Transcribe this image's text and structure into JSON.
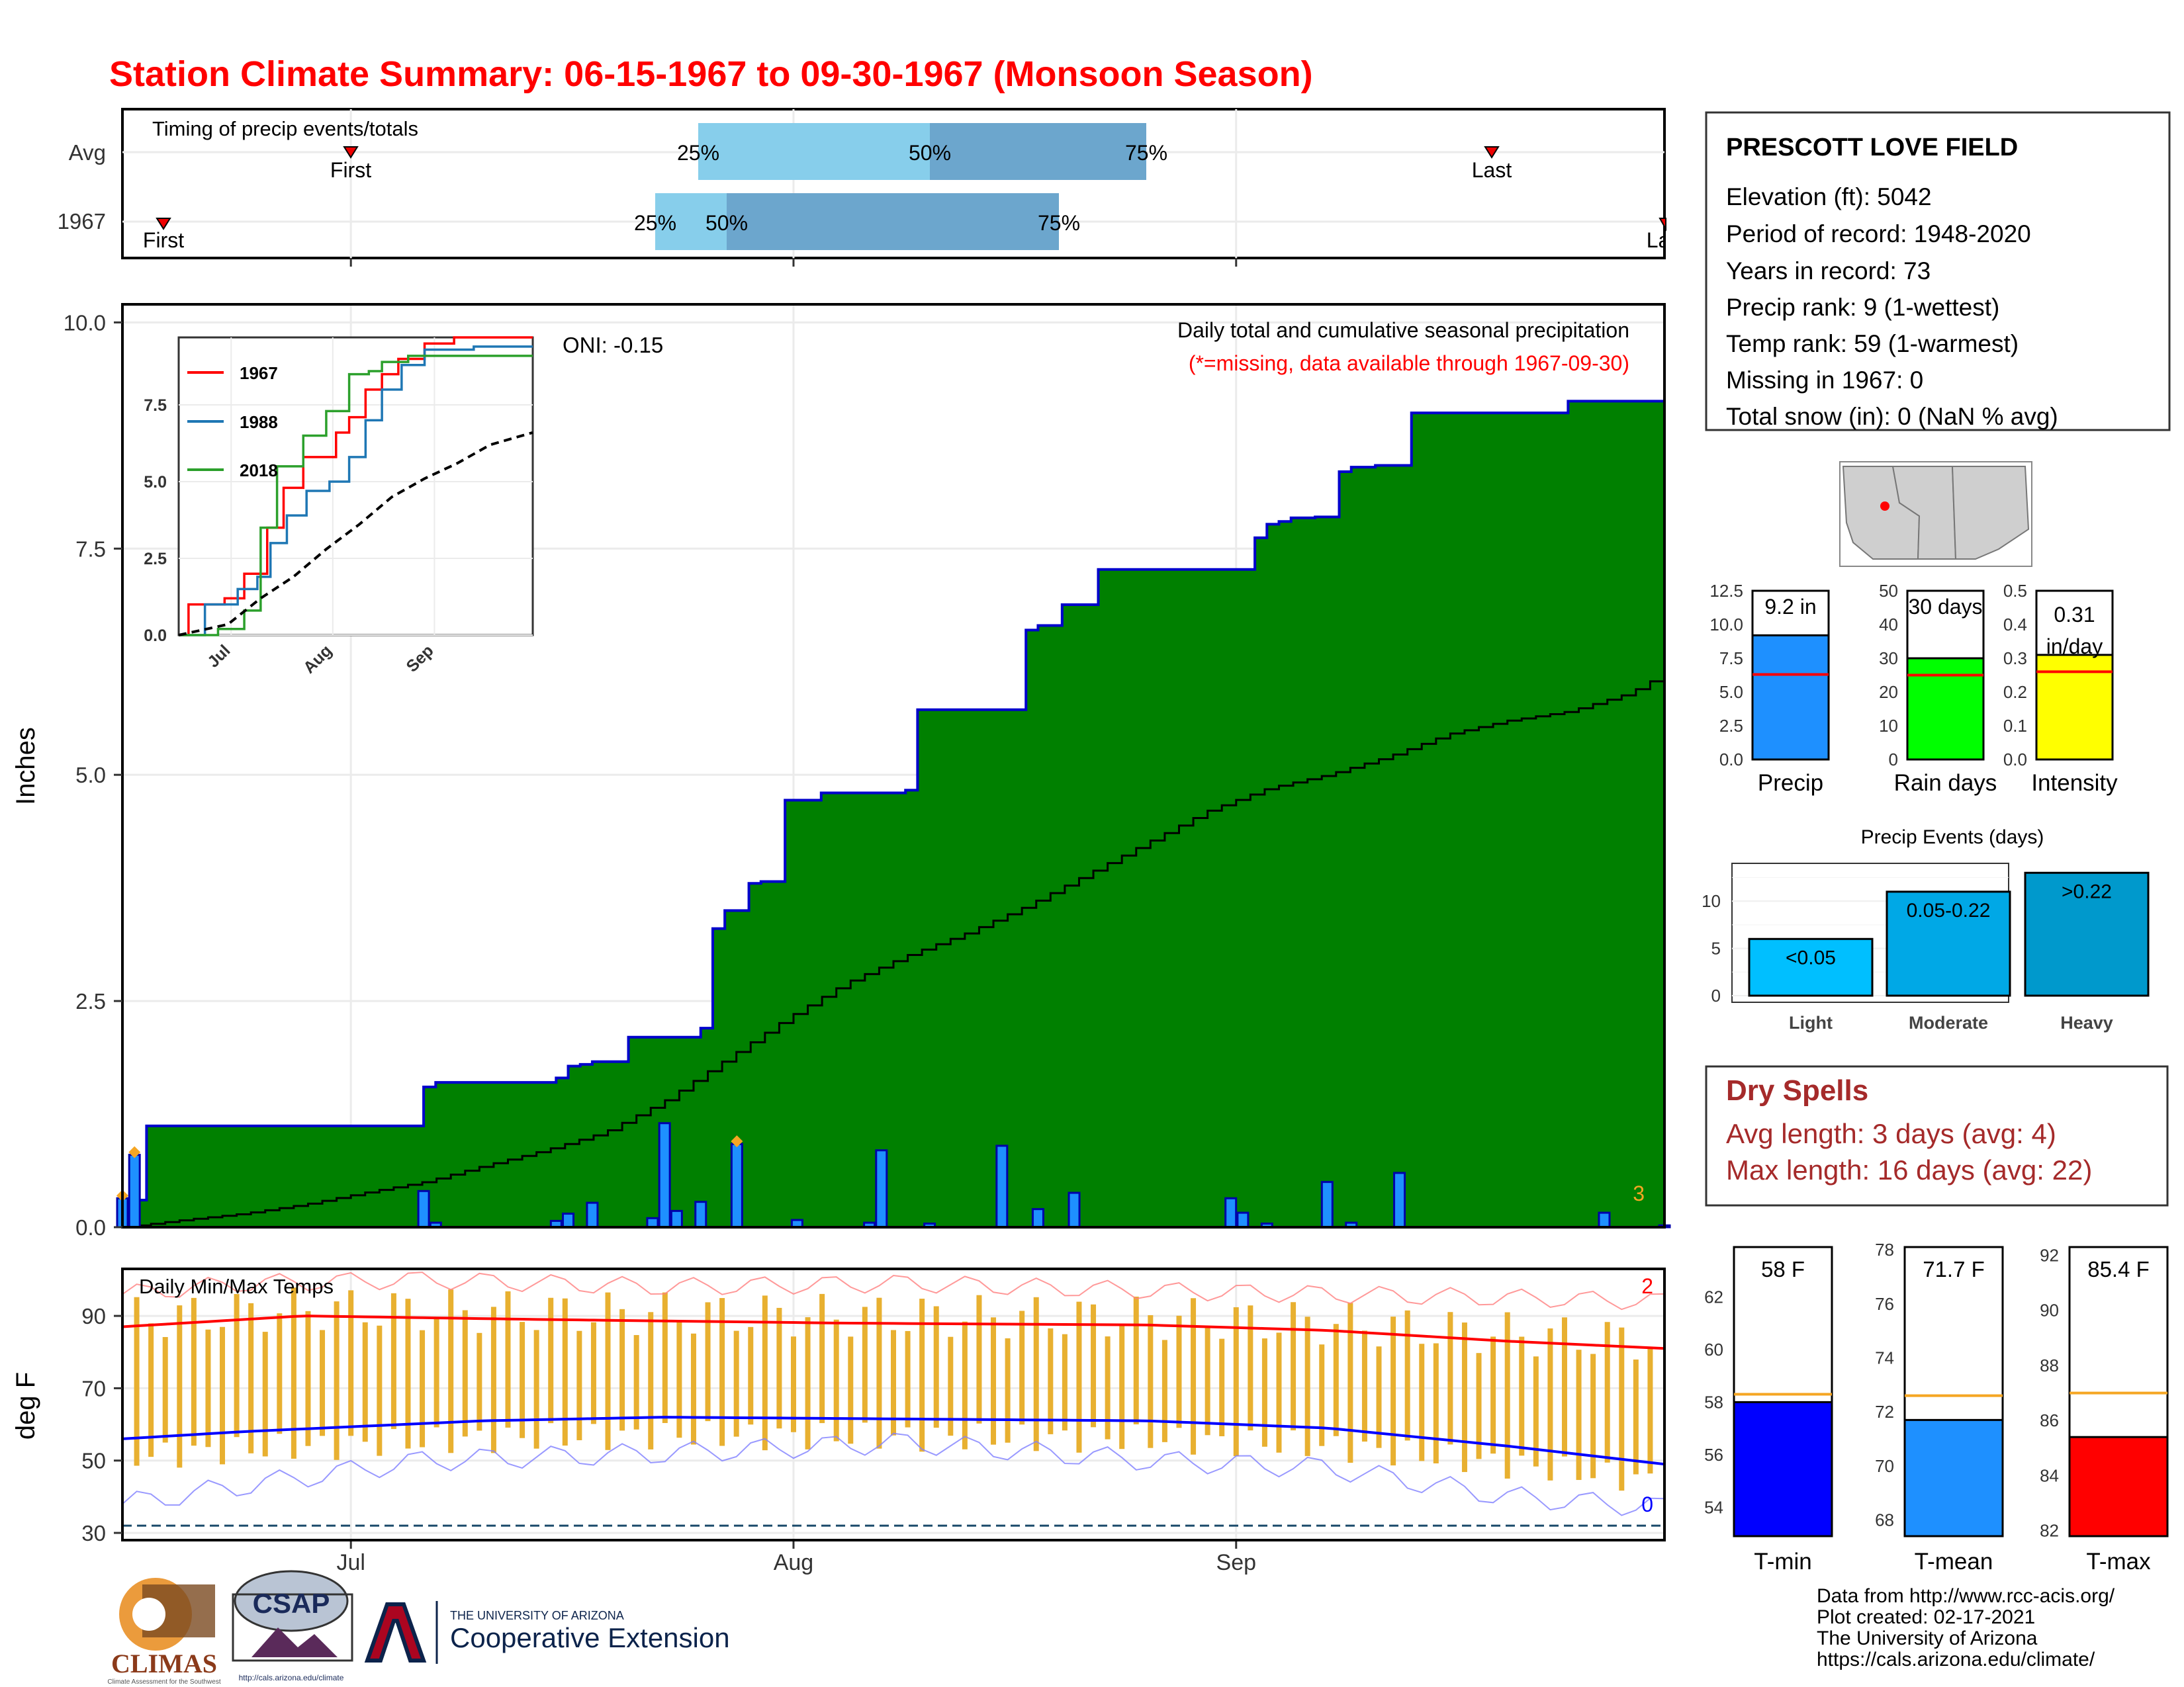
{
  "title": "Station Climate Summary: 06-15-1967 to 09-30-1967 (Monsoon Season)",
  "colors": {
    "title": "#ff0000",
    "cum_fill": "#008000",
    "cum_line": "#0000cc",
    "avg_fill": "#e0e0e0",
    "bar": "#1e90ff",
    "orange": "#f5a623",
    "quartile_light": "#87ceeb",
    "quartile_dark": "#6ca6cd",
    "tmax": "#ff0000",
    "tmin": "#0000ff",
    "temp_bar": "#e8b030",
    "dry": "#a52a2a",
    "rain_days": "#00ff00",
    "intensity": "#ffff00",
    "light": "#00bfff",
    "moderate": "#00a8e6",
    "heavy": "#0099cc"
  },
  "timing": {
    "title": "Timing of precip events/totals",
    "rows": [
      "Avg",
      "1967"
    ],
    "avg": {
      "first": "First",
      "last": "Last",
      "q25": "25%",
      "q50": "50%",
      "q75": "75%"
    },
    "y1967": {
      "first": "First",
      "last": "Last",
      "q25": "25%",
      "q50": "50%",
      "q75": "75%"
    }
  },
  "month_labels": [
    "Jul",
    "Aug",
    "Sep"
  ],
  "main": {
    "ylabel": "Inches",
    "oni": "ONI: -0.15",
    "legend1": "Daily total and cumulative seasonal precipitation",
    "legend2": "(*=missing, data available through 1967-09-30)",
    "corner_count": "3",
    "yticks": [
      "0.0",
      "2.5",
      "5.0",
      "7.5",
      "10.0"
    ]
  },
  "chart_data": [
    {
      "type": "area",
      "title": "Daily total and cumulative seasonal precipitation",
      "ylabel": "Inches",
      "ylim": [
        0,
        10.2
      ],
      "x_start": "1967-06-15",
      "cumulative_1967": [
        [
          0,
          0.02
        ],
        [
          1,
          0.3
        ],
        [
          2,
          1.12
        ],
        [
          25,
          1.55
        ],
        [
          26,
          1.6
        ],
        [
          36,
          1.65
        ],
        [
          37,
          1.78
        ],
        [
          38,
          1.8
        ],
        [
          39,
          1.83
        ],
        [
          42,
          2.1
        ],
        [
          47,
          2.1
        ],
        [
          48,
          2.2
        ],
        [
          49,
          3.3
        ],
        [
          50,
          3.5
        ],
        [
          52,
          3.8
        ],
        [
          53,
          3.82
        ],
        [
          55,
          4.72
        ],
        [
          58,
          4.8
        ],
        [
          65,
          4.83
        ],
        [
          66,
          5.72
        ],
        [
          75,
          6.6
        ],
        [
          76,
          6.65
        ],
        [
          78,
          6.88
        ],
        [
          81,
          7.27
        ],
        [
          94,
          7.62
        ],
        [
          95,
          7.77
        ],
        [
          96,
          7.8
        ],
        [
          97,
          7.84
        ],
        [
          99,
          7.85
        ],
        [
          101,
          8.35
        ],
        [
          102,
          8.4
        ],
        [
          104,
          8.42
        ],
        [
          107,
          9.0
        ],
        [
          120,
          9.13
        ],
        [
          128,
          9.2
        ]
      ],
      "average_cumulative": [
        [
          0,
          0.0
        ],
        [
          5,
          0.08
        ],
        [
          10,
          0.15
        ],
        [
          15,
          0.25
        ],
        [
          20,
          0.38
        ],
        [
          25,
          0.5
        ],
        [
          30,
          0.68
        ],
        [
          35,
          0.85
        ],
        [
          40,
          1.05
        ],
        [
          45,
          1.4
        ],
        [
          50,
          1.85
        ],
        [
          55,
          2.3
        ],
        [
          60,
          2.7
        ],
        [
          65,
          3.0
        ],
        [
          70,
          3.25
        ],
        [
          75,
          3.55
        ],
        [
          80,
          3.9
        ],
        [
          85,
          4.25
        ],
        [
          90,
          4.6
        ],
        [
          95,
          4.85
        ],
        [
          100,
          5.0
        ],
        [
          105,
          5.2
        ],
        [
          110,
          5.45
        ],
        [
          115,
          5.6
        ],
        [
          120,
          5.7
        ],
        [
          125,
          5.9
        ],
        [
          128,
          6.12
        ]
      ],
      "daily": [
        [
          0,
          0.32
        ],
        [
          1,
          0.8
        ],
        [
          25,
          0.4
        ],
        [
          26,
          0.05
        ],
        [
          36,
          0.07
        ],
        [
          37,
          0.15
        ],
        [
          39,
          0.27
        ],
        [
          44,
          0.1
        ],
        [
          45,
          1.15
        ],
        [
          46,
          0.18
        ],
        [
          48,
          0.28
        ],
        [
          51,
          0.92
        ],
        [
          56,
          0.08
        ],
        [
          62,
          0.05
        ],
        [
          63,
          0.85
        ],
        [
          67,
          0.04
        ],
        [
          73,
          0.9
        ],
        [
          76,
          0.2
        ],
        [
          79,
          0.38
        ],
        [
          92,
          0.32
        ],
        [
          93,
          0.16
        ],
        [
          95,
          0.04
        ],
        [
          100,
          0.5
        ],
        [
          102,
          0.05
        ],
        [
          106,
          0.6
        ],
        [
          123,
          0.16
        ],
        [
          128,
          0.02
        ]
      ],
      "missing_markers": [
        [
          0,
          0.32
        ],
        [
          1,
          0.8
        ],
        [
          51,
          0.92
        ]
      ]
    },
    {
      "type": "line",
      "title": "",
      "xlim": [
        "1967-06-15",
        "1967-09-30"
      ],
      "ylim": [
        0,
        9.7
      ],
      "yticks": [
        0.0,
        2.5,
        5.0,
        7.5
      ],
      "series": [
        {
          "name": "1967",
          "color": "#ff0000",
          "points": [
            [
              0,
              0.0
            ],
            [
              3,
              1.0
            ],
            [
              14,
              1.2
            ],
            [
              20,
              2.0
            ],
            [
              27,
              3.5
            ],
            [
              32,
              4.8
            ],
            [
              38,
              5.8
            ],
            [
              48,
              6.6
            ],
            [
              52,
              7.1
            ],
            [
              57,
              8.0
            ],
            [
              62,
              8.5
            ],
            [
              67,
              9.0
            ],
            [
              75,
              9.5
            ],
            [
              84,
              9.7
            ],
            [
              108,
              9.7
            ]
          ]
        },
        {
          "name": "1988",
          "color": "#1f77b4",
          "points": [
            [
              0,
              0.0
            ],
            [
              8,
              1.0
            ],
            [
              18,
              1.5
            ],
            [
              24,
              1.9
            ],
            [
              28,
              3.0
            ],
            [
              33,
              3.9
            ],
            [
              39,
              4.7
            ],
            [
              46,
              5.0
            ],
            [
              52,
              5.8
            ],
            [
              57,
              7.0
            ],
            [
              62,
              8.0
            ],
            [
              68,
              8.8
            ],
            [
              75,
              9.3
            ],
            [
              90,
              9.4
            ],
            [
              108,
              9.4
            ]
          ]
        },
        {
          "name": "2018",
          "color": "#2ca02c",
          "points": [
            [
              0,
              0.0
            ],
            [
              12,
              0.2
            ],
            [
              20,
              0.8
            ],
            [
              25,
              3.5
            ],
            [
              30,
              5.5
            ],
            [
              38,
              6.5
            ],
            [
              45,
              7.3
            ],
            [
              52,
              8.5
            ],
            [
              58,
              8.6
            ],
            [
              62,
              8.9
            ],
            [
              70,
              9.1
            ],
            [
              108,
              9.1
            ]
          ]
        },
        {
          "name": "",
          "color": "#000000",
          "points": [
            [
              0,
              0.0
            ],
            [
              15,
              0.35
            ],
            [
              25,
              1.2
            ],
            [
              35,
              1.9
            ],
            [
              45,
              2.8
            ],
            [
              55,
              3.6
            ],
            [
              65,
              4.5
            ],
            [
              75,
              5.1
            ],
            [
              85,
              5.6
            ],
            [
              95,
              6.2
            ],
            [
              108,
              6.6
            ]
          ]
        }
      ],
      "legend_placement": "top-left"
    },
    {
      "type": "line",
      "title": "Daily Min/Max Temps",
      "ylabel": "deg F",
      "ylim": [
        28,
        103
      ],
      "yticks": [
        30,
        50,
        70,
        90
      ],
      "freezing_line": 32,
      "count_high": "2",
      "count_low": "0",
      "series": [
        {
          "name": "",
          "color": "#ff0000",
          "points": [
            [
              0,
              87
            ],
            [
              15,
              90
            ],
            [
              35,
              89
            ],
            [
              60,
              88
            ],
            [
              85,
              87.5
            ],
            [
              100,
              86
            ],
            [
              115,
              83
            ],
            [
              128,
              81
            ]
          ]
        },
        {
          "name": "",
          "color": "#0000ff",
          "points": [
            [
              0,
              56
            ],
            [
              10,
              58
            ],
            [
              30,
              61
            ],
            [
              45,
              62
            ],
            [
              65,
              61.5
            ],
            [
              85,
              61
            ],
            [
              100,
              59
            ],
            [
              115,
              54
            ],
            [
              128,
              49
            ]
          ]
        },
        {
          "name": "",
          "color": "#ff8080",
          "points": [
            [
              0,
              96
            ],
            [
              10,
              99
            ],
            [
              25,
              100
            ],
            [
              45,
              98
            ],
            [
              65,
              99
            ],
            [
              85,
              97
            ],
            [
              100,
              96
            ],
            [
              115,
              95
            ],
            [
              128,
              94
            ]
          ]
        },
        {
          "name": "",
          "color": "#8080ff",
          "points": [
            [
              0,
              38
            ],
            [
              10,
              43
            ],
            [
              25,
              50
            ],
            [
              45,
              52
            ],
            [
              65,
              55
            ],
            [
              85,
              50
            ],
            [
              100,
              48
            ],
            [
              115,
              40
            ],
            [
              128,
              37
            ]
          ]
        }
      ]
    },
    {
      "type": "bar",
      "title": "",
      "categories": [
        "Precip",
        "Rain days",
        "Intensity"
      ],
      "values": [
        9.2,
        30,
        0.31
      ],
      "labels": [
        "9.2 in",
        "30 days",
        "0.31 in/day"
      ],
      "averages": [
        6.3,
        25,
        0.26
      ],
      "ylims": [
        [
          0,
          12.5
        ],
        [
          0,
          50
        ],
        [
          0,
          0.5
        ]
      ],
      "yticks": [
        [
          "0.0",
          "2.5",
          "5.0",
          "7.5",
          "10.0",
          "12.5"
        ],
        [
          "0",
          "10",
          "20",
          "30",
          "40",
          "50"
        ],
        [
          "0.0",
          "0.1",
          "0.2",
          "0.3",
          "0.4",
          "0.5"
        ]
      ]
    },
    {
      "type": "bar",
      "title": "Precip Events (days)",
      "categories": [
        "Light",
        "Moderate",
        "Heavy"
      ],
      "values": [
        6,
        11,
        13
      ],
      "labels": [
        "<0.05",
        "0.05-0.22",
        ">0.22"
      ],
      "ylim": [
        0,
        14
      ],
      "yticks": [
        "0",
        "5",
        "10"
      ]
    },
    {
      "type": "bar",
      "title": "",
      "categories": [
        "T-min",
        "T-mean",
        "T-max"
      ],
      "values": [
        58,
        71.7,
        85.4
      ],
      "labels": [
        "58 F",
        "71.7 F",
        "85.4 F"
      ],
      "averages": [
        58.3,
        72.6,
        87.0
      ],
      "ylims": [
        [
          52.9,
          63.9
        ],
        [
          67.4,
          78.1
        ],
        [
          81.8,
          92.3
        ]
      ],
      "yticks": [
        [
          "54",
          "56",
          "58",
          "60",
          "62"
        ],
        [
          "68",
          "70",
          "72",
          "74",
          "76",
          "78"
        ],
        [
          "82",
          "84",
          "86",
          "88",
          "90",
          "92"
        ]
      ]
    }
  ],
  "station": {
    "name": "PRESCOTT LOVE FIELD",
    "lines": [
      "Elevation (ft): 5042",
      "Period of record: 1948-2020",
      "Years in record: 73",
      "Precip rank: 9 (1-wettest)",
      "Temp rank: 59 (1-warmest)",
      "Missing in 1967: 0",
      "Total snow (in): 0 (NaN % avg)"
    ]
  },
  "dry_spells": {
    "title": "Dry Spells",
    "avg": "Avg length: 3 days (avg: 4)",
    "max": "Max length: 16 days (avg: 22)"
  },
  "credits": [
    "Data from http://www.rcc-acis.org/",
    "Plot created: 02-17-2021",
    "The University of Arizona",
    "https://cals.arizona.edu/climate/"
  ],
  "logos": {
    "climas": "CLIMAS",
    "climas_sub": "Climate Assessment for the Southwest",
    "csap": "CSAP",
    "csap_url": "http://cals.arizona.edu/climate",
    "ua_small": "THE UNIVERSITY OF ARIZONA",
    "ua_big": "Cooperative Extension"
  }
}
